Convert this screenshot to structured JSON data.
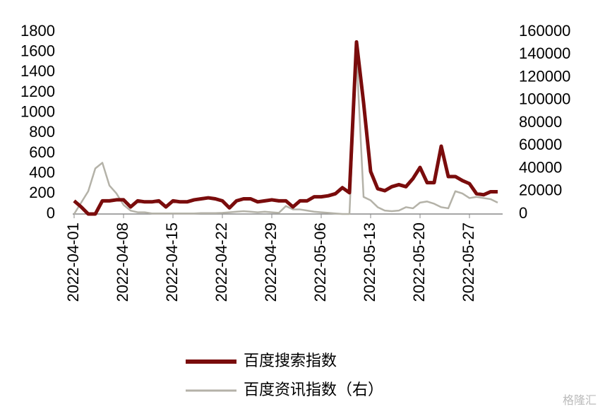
{
  "chart_data": {
    "type": "line",
    "x": [
      "2022-04-01",
      "2022-04-02",
      "2022-04-03",
      "2022-04-04",
      "2022-04-05",
      "2022-04-06",
      "2022-04-07",
      "2022-04-08",
      "2022-04-09",
      "2022-04-10",
      "2022-04-11",
      "2022-04-12",
      "2022-04-13",
      "2022-04-14",
      "2022-04-15",
      "2022-04-16",
      "2022-04-17",
      "2022-04-18",
      "2022-04-19",
      "2022-04-20",
      "2022-04-21",
      "2022-04-22",
      "2022-04-23",
      "2022-04-24",
      "2022-04-25",
      "2022-04-26",
      "2022-04-27",
      "2022-04-28",
      "2022-04-29",
      "2022-04-30",
      "2022-05-01",
      "2022-05-02",
      "2022-05-03",
      "2022-05-04",
      "2022-05-05",
      "2022-05-06",
      "2022-05-07",
      "2022-05-08",
      "2022-05-09",
      "2022-05-10",
      "2022-05-11",
      "2022-05-12",
      "2022-05-13",
      "2022-05-14",
      "2022-05-15",
      "2022-05-16",
      "2022-05-17",
      "2022-05-18",
      "2022-05-19",
      "2022-05-20",
      "2022-05-21",
      "2022-05-22",
      "2022-05-23",
      "2022-05-24",
      "2022-05-25",
      "2022-05-26",
      "2022-05-27",
      "2022-05-28",
      "2022-05-29",
      "2022-05-30",
      "2022-05-31"
    ],
    "xticks": [
      "2022-04-01",
      "2022-04-08",
      "2022-04-15",
      "2022-04-22",
      "2022-04-29",
      "2022-05-06",
      "2022-05-13",
      "2022-05-20",
      "2022-05-27"
    ],
    "series": [
      {
        "name": "百度搜索指数",
        "color": "#7a0c0c",
        "values": [
          130,
          70,
          0,
          0,
          130,
          130,
          140,
          140,
          70,
          130,
          120,
          120,
          130,
          70,
          130,
          120,
          120,
          140,
          150,
          160,
          150,
          130,
          60,
          130,
          150,
          150,
          120,
          130,
          140,
          130,
          130,
          70,
          130,
          130,
          170,
          170,
          180,
          200,
          260,
          210,
          1700,
          1100,
          420,
          250,
          230,
          270,
          290,
          270,
          350,
          460,
          310,
          310,
          670,
          370,
          370,
          330,
          300,
          200,
          190,
          220,
          220
        ]
      },
      {
        "name": "百度资讯指数（右）",
        "color": "#b4b2a8",
        "axis": "y2",
        "values": [
          0,
          10000,
          20000,
          40000,
          45000,
          25000,
          18000,
          8000,
          3000,
          1500,
          1500,
          500,
          500,
          500,
          500,
          500,
          500,
          500,
          800,
          800,
          800,
          1000,
          1500,
          2000,
          2500,
          2000,
          1500,
          2000,
          1500,
          1000,
          7000,
          4000,
          4000,
          3000,
          2000,
          1500,
          1000,
          500,
          0,
          0,
          140000,
          15000,
          12000,
          6000,
          3000,
          2500,
          3000,
          6000,
          5000,
          10000,
          11000,
          9000,
          6000,
          5000,
          20000,
          18000,
          14000,
          15000,
          14000,
          13000,
          10000
        ]
      }
    ],
    "ylim": [
      0,
      1800
    ],
    "yticks": [
      0,
      200,
      400,
      600,
      800,
      1000,
      1200,
      1400,
      1600,
      1800
    ],
    "y2lim": [
      0,
      160000
    ],
    "y2ticks": [
      0,
      20000,
      40000,
      60000,
      80000,
      100000,
      120000,
      140000,
      160000
    ],
    "watermark": "格隆汇"
  }
}
